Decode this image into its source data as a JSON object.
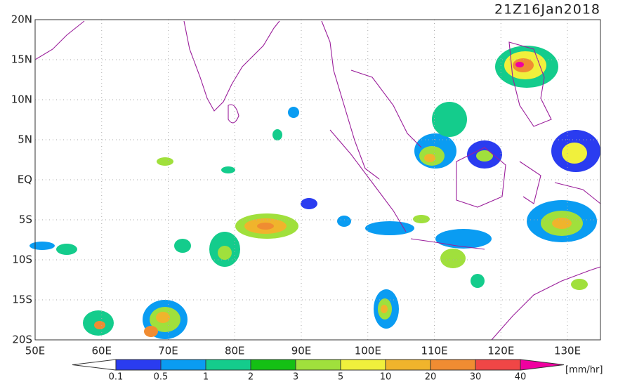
{
  "header": {
    "title": "21Z16Jan2018"
  },
  "map": {
    "lat_labels": [
      "20N",
      "15N",
      "10N",
      "5N",
      "EQ",
      "5S",
      "10S",
      "15S",
      "20S"
    ],
    "lon_labels": [
      "50E",
      "60E",
      "70E",
      "80E",
      "90E",
      "100E",
      "110E",
      "120E",
      "130E"
    ]
  },
  "colorbar": {
    "labels": [
      "0.1",
      "0.5",
      "1",
      "2",
      "3",
      "5",
      "10",
      "20",
      "30",
      "40"
    ],
    "colors": [
      "#2a3cf0",
      "#0a9cf2",
      "#14cc8c",
      "#14c014",
      "#a0e03c",
      "#f0f03c",
      "#f0b42c",
      "#f08c32",
      "#f04646",
      "#f000a0"
    ],
    "under_color": "#ffffff",
    "units": "[mm/hr]"
  }
}
